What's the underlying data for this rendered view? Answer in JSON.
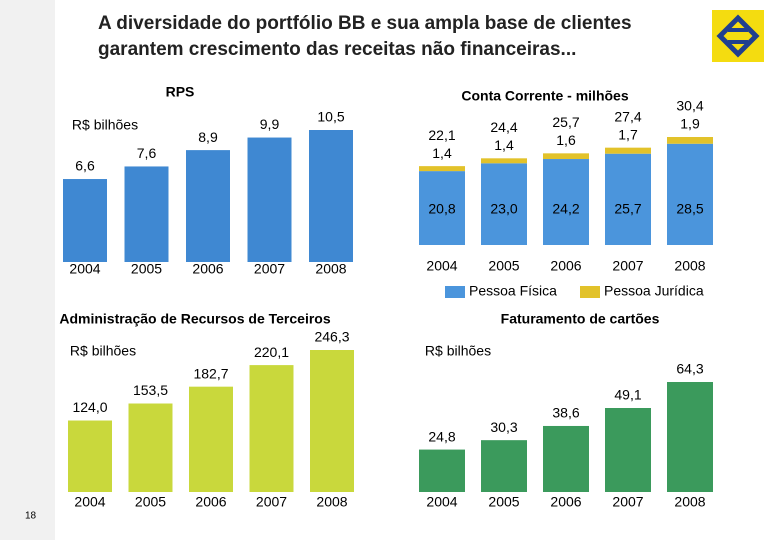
{
  "title": [
    "A diversidade do portfólio BB e sua ampla base de clientes",
    "garantem crescimento das receitas não financeiras..."
  ],
  "page_number": "18",
  "chart_data": [
    {
      "type": "bar",
      "title": "RPS",
      "unit": "R$ bilhões",
      "color": "#3f88d2",
      "categories": [
        "2004",
        "2005",
        "2006",
        "2007",
        "2008"
      ],
      "values": [
        6.6,
        7.6,
        8.9,
        9.9,
        10.5
      ],
      "value_labels": [
        "6,6",
        "7,6",
        "8,9",
        "9,9",
        "10,5"
      ]
    },
    {
      "type": "stacked_bar",
      "title": "Conta Corrente - milhões",
      "categories": [
        "2004",
        "2005",
        "2006",
        "2007",
        "2008"
      ],
      "series": [
        {
          "name": "Pessoa Física",
          "color": "#4b95dc",
          "values": [
            20.8,
            23.0,
            24.2,
            25.7,
            28.5
          ],
          "value_labels": [
            "20,8",
            "23,0",
            "24,2",
            "25,7",
            "28,5"
          ]
        },
        {
          "name": "Pessoa Jurídica",
          "color": "#e2c22a",
          "values": [
            1.4,
            1.4,
            1.6,
            1.7,
            1.9
          ],
          "value_labels": [
            "1,4",
            "1,4",
            "1,6",
            "1,7",
            "1,9"
          ]
        }
      ],
      "totals": [
        22.1,
        24.4,
        25.7,
        27.4,
        30.4
      ],
      "total_labels": [
        "22,1",
        "24,4",
        "25,7",
        "27,4",
        "30,4"
      ]
    },
    {
      "type": "bar",
      "title": "Administração de Recursos de Terceiros",
      "unit": "R$ bilhões",
      "color": "#c9d83c",
      "categories": [
        "2004",
        "2005",
        "2006",
        "2007",
        "2008"
      ],
      "values": [
        124.0,
        153.5,
        182.7,
        220.1,
        246.3
      ],
      "value_labels": [
        "124,0",
        "153,5",
        "182,7",
        "220,1",
        "246,3"
      ]
    },
    {
      "type": "bar",
      "title": "Faturamento de cartões",
      "unit": "R$ bilhões",
      "color": "#3b9a5c",
      "categories": [
        "2004",
        "2005",
        "2006",
        "2007",
        "2008"
      ],
      "values": [
        24.8,
        30.3,
        38.6,
        49.1,
        64.3
      ],
      "value_labels": [
        "24,8",
        "30,3",
        "38,6",
        "49,1",
        "64,3"
      ]
    }
  ]
}
